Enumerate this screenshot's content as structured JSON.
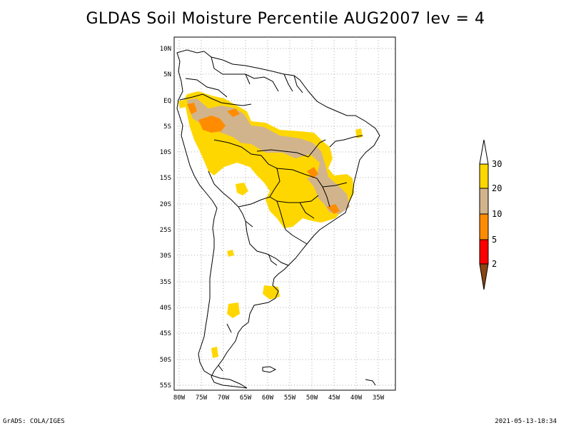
{
  "title": "GLDAS Soil Moisture Percentile AUG2007 lev = 4",
  "footer": {
    "left": "GrADS: COLA/IGES",
    "right": "2021-05-13-18:34"
  },
  "axes": {
    "lat_labels": [
      "10N",
      "5N",
      "EQ",
      "5S",
      "10S",
      "15S",
      "20S",
      "25S",
      "30S",
      "35S",
      "40S",
      "45S",
      "50S",
      "55S"
    ],
    "lon_labels": [
      "80W",
      "75W",
      "70W",
      "65W",
      "60W",
      "55W",
      "50W",
      "45W",
      "40W",
      "35W"
    ]
  },
  "colorbar": {
    "labels": [
      "30",
      "20",
      "10",
      "5",
      "2"
    ],
    "colors": {
      "above_30": "#ffffff",
      "20_30": "#ffd700",
      "10_20": "#d2b48c",
      "5_10": "#ff8c00",
      "2_5": "#ff0000",
      "below_2": "#8b4513"
    }
  }
}
